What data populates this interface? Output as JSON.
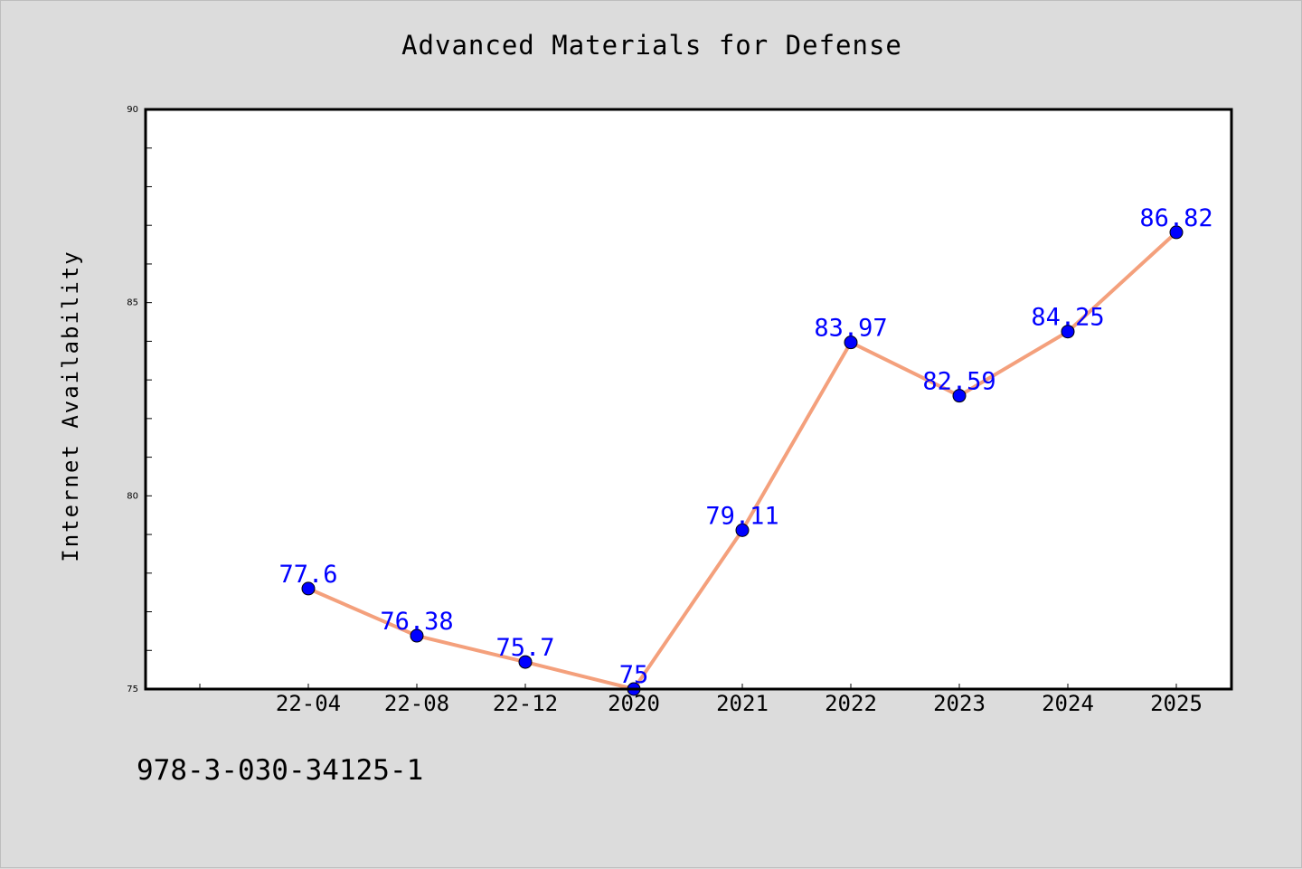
{
  "chart_data": {
    "type": "line",
    "title": "Advanced Materials for Defense",
    "xlabel": "",
    "ylabel": "Internet Availability",
    "categories": [
      "22-04",
      "22-08",
      "22-12",
      "2020",
      "2021",
      "2022",
      "2023",
      "2024",
      "2025"
    ],
    "series": [
      {
        "values": [
          77.6,
          76.38,
          75.7,
          75,
          79.11,
          83.97,
          82.59,
          84.25,
          86.82
        ],
        "labels": [
          "77.6",
          "76.38",
          "75.7",
          "75",
          "79.11",
          "83.97",
          "82.59",
          "84.25",
          "86.82"
        ],
        "line_color": "#f4a07c",
        "marker_color": "#0000ff"
      }
    ],
    "ylim": [
      75,
      90
    ],
    "yticks": [
      "75",
      "80",
      "85",
      "90"
    ],
    "grid": false,
    "legend": "none",
    "label_color": "#0000ff"
  },
  "footer": {
    "isbn": "978-3-030-34125-1"
  },
  "colors": {
    "background": "#dcdcdc",
    "plot_area": "#ffffff",
    "axes": "#000000"
  }
}
